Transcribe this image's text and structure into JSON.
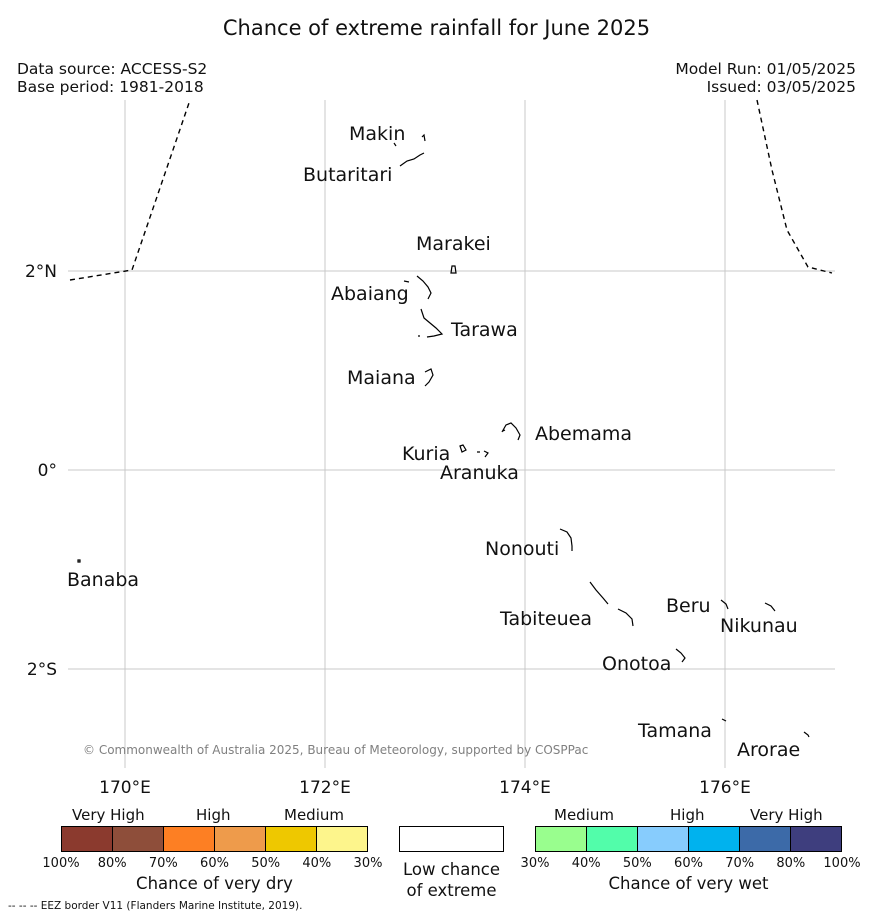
{
  "title": "Chance of extreme rainfall for June 2025",
  "meta": {
    "data_source": "Data source: ACCESS-S2",
    "base_period": "Base period: 1981-2018",
    "model_run": "Model Run: 01/05/2025",
    "issued": "Issued: 03/05/2025"
  },
  "map": {
    "lat_labels": [
      "2°N",
      "0°",
      "2°S"
    ],
    "lon_labels": [
      "170°E",
      "172°E",
      "174°E",
      "176°E"
    ],
    "places": [
      "Makin",
      "Butaritari",
      "Marakei",
      "Abaiang",
      "Tarawa",
      "Maiana",
      "Abemama",
      "Kuria",
      "Aranuka",
      "Nonouti",
      "Banaba",
      "Tabiteuea",
      "Beru",
      "Nikunau",
      "Onotoa",
      "Tamana",
      "Arorae"
    ],
    "copyright": "© Commonwealth of Australia 2025, Bureau of Meteorology, supported by COSPPac",
    "gridline_color": "#c8c8c8",
    "eez_color": "#000000"
  },
  "legend_dry": {
    "categories": [
      "Very High",
      "High",
      "Medium"
    ],
    "colors": [
      "#8b3a2e",
      "#8e4e3a",
      "#fd7f23",
      "#ee9b4b",
      "#eec800",
      "#fdf58c"
    ],
    "ticks": [
      "100%",
      "80%",
      "70%",
      "60%",
      "50%",
      "40%",
      "30%"
    ],
    "label": "Chance of very dry"
  },
  "legend_low": {
    "color": "#ffffff",
    "label_line1": "Low chance",
    "label_line2": "of extreme"
  },
  "legend_wet": {
    "categories": [
      "Medium",
      "High",
      "Very High"
    ],
    "colors": [
      "#99fe8e",
      "#52fdaa",
      "#87ccfd",
      "#00b2ee",
      "#3c6aa8",
      "#3e3e7e"
    ],
    "ticks": [
      "30%",
      "40%",
      "50%",
      "60%",
      "70%",
      "80%",
      "100%"
    ],
    "label": "Chance of very wet"
  },
  "footnote": "--  --  -- EEZ border V11 (Flanders Marine Institute, 2019)."
}
